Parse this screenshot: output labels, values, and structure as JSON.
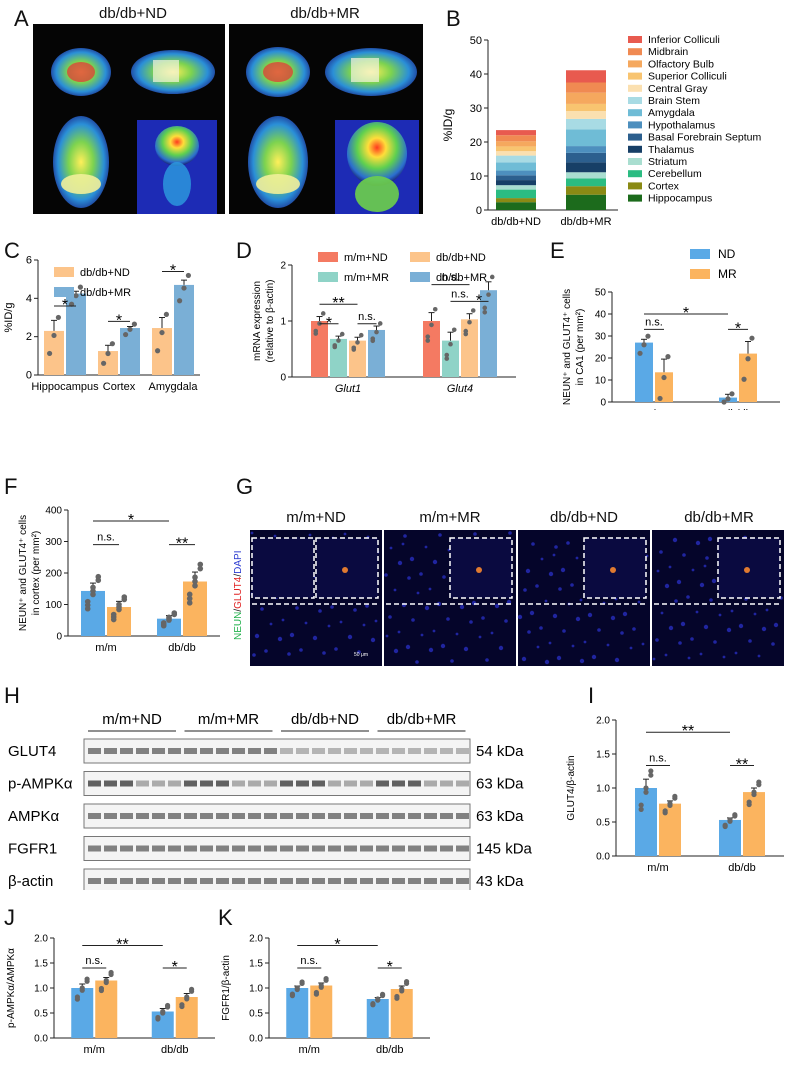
{
  "colors": {
    "blue": "#5aa9e6",
    "orange": "#fbb45f",
    "lightorange": "#fcc48a",
    "steelblue": "#7aafd6",
    "red": "#f47a62",
    "teal": "#8fd3c7",
    "dot": "#666666"
  },
  "panelA": {
    "label": "A",
    "headers": [
      "db/db+ND",
      "db/db+MR"
    ]
  },
  "panelB": {
    "label": "B",
    "ylabel": "%ID/g",
    "ylim": [
      0,
      50
    ],
    "yticks": [
      0,
      10,
      20,
      30,
      40,
      50
    ],
    "categories": [
      "db/db+ND",
      "db/db+MR"
    ],
    "legend": [
      "Inferior Colliculi",
      "Midbrain",
      "Olfactory Bulb",
      "Superior Colliculi",
      "Central Gray",
      "Brain Stem",
      "Amygdala",
      "Hypothalamus",
      "Basal Forebrain Septum",
      "Thalamus",
      "Striatum",
      "Cerebellum",
      "Cortex",
      "Hippocampus"
    ],
    "segment_colors": [
      "#e85a4f",
      "#f08a52",
      "#f5a85e",
      "#f8c470",
      "#fbe0b0",
      "#a8dbe4",
      "#6fbcd6",
      "#4d8fbe",
      "#2c5f8e",
      "#173f66",
      "#a9ded0",
      "#2bbc82",
      "#8a8a14",
      "#1c6b1c"
    ],
    "stack_order_bottom_to_top": [
      "Hippocampus",
      "Cortex",
      "Cerebellum",
      "Striatum",
      "Thalamus",
      "Basal Forebrain Septum",
      "Hypothalamus",
      "Amygdala",
      "Brain Stem",
      "Central Gray",
      "Superior Colliculi",
      "Olfactory Bulb",
      "Midbrain",
      "Inferior Colliculi"
    ],
    "values_ND": [
      2.3,
      1.2,
      2.5,
      1.3,
      1.5,
      1.4,
      1.4,
      2.4,
      2.0,
      1.3,
      1.4,
      1.5,
      1.8,
      1.5
    ],
    "values_MR": [
      4.5,
      2.5,
      2.3,
      1.8,
      2.9,
      2.8,
      2.0,
      4.9,
      3.1,
      2.3,
      2.1,
      3.3,
      3.0,
      3.6
    ]
  },
  "panelC": {
    "label": "C",
    "ylabel": "%ID/g",
    "ylim": [
      0,
      6
    ],
    "yticks": [
      0,
      2,
      4,
      6
    ],
    "categories": [
      "Hippocampus",
      "Cortex",
      "Amygdala"
    ],
    "series": [
      {
        "name": "db/db+ND",
        "values": [
          2.3,
          1.25,
          2.45
        ],
        "err": [
          0.55,
          0.3,
          0.55
        ]
      },
      {
        "name": "db/db+MR",
        "values": [
          4.25,
          2.45,
          4.7
        ],
        "err": [
          0.12,
          0.08,
          0.25
        ]
      }
    ],
    "sig": [
      "*",
      "*",
      "*"
    ]
  },
  "panelD": {
    "label": "D",
    "ylabel_line1": "mRNA expression",
    "ylabel_line2": "(relative to ",
    "ylabel_italic": "β-actin",
    "ylabel_close": ")",
    "ylim": [
      0,
      2
    ],
    "yticks": [
      0,
      1,
      2
    ],
    "categories": [
      "Glut1",
      "Glut4"
    ],
    "series": [
      {
        "name": "m/m+ND",
        "values": [
          1.0,
          1.0
        ],
        "err": [
          0.08,
          0.15
        ]
      },
      {
        "name": "m/m+MR",
        "values": [
          0.68,
          0.65
        ],
        "err": [
          0.05,
          0.15
        ]
      },
      {
        "name": "db/db+ND",
        "values": [
          0.65,
          1.03
        ],
        "err": [
          0.06,
          0.1
        ]
      },
      {
        "name": "db/db+MR",
        "values": [
          0.84,
          1.55
        ],
        "err": [
          0.07,
          0.15
        ]
      }
    ],
    "sig": [
      "**",
      "*",
      "n.s.",
      "n.s.",
      "n.s.",
      "*"
    ]
  },
  "panelE": {
    "label": "E",
    "ylabel_line1": "NEUN⁺ and GLUT4⁺ cells",
    "ylabel_line2": "in CA1 (per mm²)",
    "ylim": [
      0,
      50
    ],
    "yticks": [
      0,
      10,
      20,
      30,
      40,
      50
    ],
    "categories": [
      "m/m",
      "db/db"
    ],
    "series": [
      {
        "name": "ND",
        "values": [
          27,
          2
        ],
        "err": [
          1.5,
          1.5
        ]
      },
      {
        "name": "MR",
        "values": [
          13.5,
          22
        ],
        "err": [
          6,
          5.5
        ]
      }
    ],
    "sig": [
      "*",
      "n.s.",
      "*"
    ]
  },
  "panelF": {
    "label": "F",
    "ylabel_line1": "NEUN⁺ and GLUT4⁺ cells",
    "ylabel_line2": "in cortex (per mm²)",
    "ylim": [
      0,
      400
    ],
    "yticks": [
      0,
      100,
      200,
      300,
      400
    ],
    "categories": [
      "m/m",
      "db/db"
    ],
    "series": [
      {
        "name": "ND",
        "values": [
          143,
          55
        ],
        "err": [
          25,
          10
        ]
      },
      {
        "name": "MR",
        "values": [
          92,
          173
        ],
        "err": [
          18,
          30
        ]
      }
    ],
    "sig": [
      "*",
      "n.s.",
      "**"
    ]
  },
  "panelG": {
    "label": "G",
    "headers": [
      "m/m+ND",
      "m/m+MR",
      "db/db+ND",
      "db/db+MR"
    ],
    "side_label": [
      "NEUN",
      "/",
      "GLUT4",
      "/",
      "DAPI"
    ],
    "scale_text": "50 μm"
  },
  "panelH": {
    "label": "H",
    "groups": [
      "m/m+ND",
      "m/m+MR",
      "db/db+ND",
      "db/db+MR"
    ],
    "rows": [
      {
        "name": "GLUT4",
        "kda": "54 kDa"
      },
      {
        "name": "p-AMPKα",
        "kda": "63 kDa"
      },
      {
        "name": "AMPKα",
        "kda": "63 kDa"
      },
      {
        "name": "FGFR1",
        "kda": "145 kDa"
      },
      {
        "name": "β-actin",
        "kda": "43 kDa"
      }
    ]
  },
  "panelI": {
    "label": "I",
    "ylabel": "GLUT4/β-actin",
    "ylim": [
      0,
      2.0
    ],
    "yticks": [
      "0.0",
      "0.5",
      "1.0",
      "1.5",
      "2.0"
    ],
    "categories": [
      "m/m",
      "db/db"
    ],
    "series": [
      {
        "name": "ND",
        "values": [
          1.0,
          0.53
        ],
        "err": [
          0.13,
          0.03
        ]
      },
      {
        "name": "MR",
        "values": [
          0.77,
          0.94
        ],
        "err": [
          0.04,
          0.06
        ]
      }
    ],
    "sig": [
      "**",
      "n.s.",
      "**"
    ]
  },
  "panelJ": {
    "label": "J",
    "ylabel": "p-AMPKα/AMPKα",
    "ylim": [
      0,
      2.0
    ],
    "yticks": [
      "0.0",
      "0.5",
      "1.0",
      "1.5",
      "2.0"
    ],
    "categories": [
      "m/m",
      "db/db"
    ],
    "series": [
      {
        "name": "ND",
        "values": [
          1.0,
          0.53
        ],
        "err": [
          0.08,
          0.06
        ]
      },
      {
        "name": "MR",
        "values": [
          1.15,
          0.82
        ],
        "err": [
          0.06,
          0.07
        ]
      }
    ],
    "sig": [
      "**",
      "n.s.",
      "*"
    ]
  },
  "panelK": {
    "label": "K",
    "ylabel": "FGFR1/β-actin",
    "ylim": [
      0,
      2.0
    ],
    "yticks": [
      "0.0",
      "0.5",
      "1.0",
      "1.5",
      "2.0"
    ],
    "categories": [
      "m/m",
      "db/db"
    ],
    "series": [
      {
        "name": "ND",
        "values": [
          1.0,
          0.78
        ],
        "err": [
          0.04,
          0.03
        ]
      },
      {
        "name": "MR",
        "values": [
          1.05,
          0.98
        ],
        "err": [
          0.05,
          0.06
        ]
      }
    ],
    "sig": [
      "*",
      "n.s.",
      "*"
    ]
  },
  "chart_data": [
    {
      "panel": "B",
      "type": "bar",
      "stacked": true,
      "categories": [
        "db/db+ND",
        "db/db+MR"
      ],
      "ylabel": "%ID/g",
      "ylim": [
        0,
        50
      ]
    },
    {
      "panel": "C",
      "type": "bar",
      "categories": [
        "Hippocampus",
        "Cortex",
        "Amygdala"
      ],
      "ylabel": "%ID/g",
      "ylim": [
        0,
        6
      ],
      "series": [
        {
          "name": "db/db+ND",
          "values": [
            2.3,
            1.25,
            2.45
          ]
        },
        {
          "name": "db/db+MR",
          "values": [
            4.25,
            2.45,
            4.7
          ]
        }
      ]
    },
    {
      "panel": "D",
      "type": "bar",
      "categories": [
        "Glut1",
        "Glut4"
      ],
      "ylim": [
        0,
        2
      ],
      "series": [
        {
          "name": "m/m+ND",
          "values": [
            1.0,
            1.0
          ]
        },
        {
          "name": "m/m+MR",
          "values": [
            0.68,
            0.65
          ]
        },
        {
          "name": "db/db+ND",
          "values": [
            0.65,
            1.03
          ]
        },
        {
          "name": "db/db+MR",
          "values": [
            0.84,
            1.55
          ]
        }
      ]
    },
    {
      "panel": "E",
      "type": "bar",
      "categories": [
        "m/m",
        "db/db"
      ],
      "ylim": [
        0,
        50
      ],
      "series": [
        {
          "name": "ND",
          "values": [
            27,
            2
          ]
        },
        {
          "name": "MR",
          "values": [
            13.5,
            22
          ]
        }
      ]
    },
    {
      "panel": "F",
      "type": "bar",
      "categories": [
        "m/m",
        "db/db"
      ],
      "ylim": [
        0,
        400
      ],
      "series": [
        {
          "name": "ND",
          "values": [
            143,
            55
          ]
        },
        {
          "name": "MR",
          "values": [
            92,
            173
          ]
        }
      ]
    },
    {
      "panel": "I",
      "type": "bar",
      "categories": [
        "m/m",
        "db/db"
      ],
      "ylabel": "GLUT4/β-actin",
      "ylim": [
        0,
        2.0
      ],
      "series": [
        {
          "name": "ND",
          "values": [
            1.0,
            0.53
          ]
        },
        {
          "name": "MR",
          "values": [
            0.77,
            0.94
          ]
        }
      ]
    },
    {
      "panel": "J",
      "type": "bar",
      "categories": [
        "m/m",
        "db/db"
      ],
      "ylabel": "p-AMPKα/AMPKα",
      "ylim": [
        0,
        2.0
      ],
      "series": [
        {
          "name": "ND",
          "values": [
            1.0,
            0.53
          ]
        },
        {
          "name": "MR",
          "values": [
            1.15,
            0.82
          ]
        }
      ]
    },
    {
      "panel": "K",
      "type": "bar",
      "categories": [
        "m/m",
        "db/db"
      ],
      "ylabel": "FGFR1/β-actin",
      "ylim": [
        0,
        2.0
      ],
      "series": [
        {
          "name": "ND",
          "values": [
            1.0,
            0.78
          ]
        },
        {
          "name": "MR",
          "values": [
            1.05,
            0.98
          ]
        }
      ]
    }
  ]
}
